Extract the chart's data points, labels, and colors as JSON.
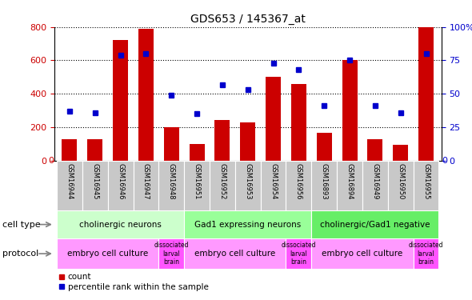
{
  "title": "GDS653 / 145367_at",
  "samples": [
    "GSM16944",
    "GSM16945",
    "GSM16946",
    "GSM16947",
    "GSM16948",
    "GSM16951",
    "GSM16952",
    "GSM16953",
    "GSM16954",
    "GSM16956",
    "GSM16893",
    "GSM16894",
    "GSM16949",
    "GSM16950",
    "GSM16955"
  ],
  "counts": [
    130,
    130,
    720,
    790,
    200,
    100,
    245,
    230,
    500,
    460,
    165,
    600,
    130,
    95,
    800
  ],
  "percentile_ranks": [
    37,
    36,
    79,
    80,
    49,
    35,
    57,
    53,
    73,
    68,
    41,
    75,
    41,
    36,
    80
  ],
  "ylim_left": [
    0,
    800
  ],
  "ylim_right": [
    0,
    100
  ],
  "yticks_left": [
    0,
    200,
    400,
    600,
    800
  ],
  "yticks_right": [
    0,
    25,
    50,
    75,
    100
  ],
  "bar_color": "#cc0000",
  "dot_color": "#0000cc",
  "cell_types": [
    {
      "label": "cholinergic neurons",
      "start": 0,
      "end": 5
    },
    {
      "label": "Gad1 expressing neurons",
      "start": 5,
      "end": 10
    },
    {
      "label": "cholinergic/Gad1 negative",
      "start": 10,
      "end": 15
    }
  ],
  "cell_type_colors": [
    "#ccffcc",
    "#99ff99",
    "#66ee66"
  ],
  "protocols": [
    {
      "label": "embryo cell culture",
      "start": 0,
      "end": 4,
      "small": false
    },
    {
      "label": "dissociated\nlarval\nbrain",
      "start": 4,
      "end": 5,
      "small": true
    },
    {
      "label": "embryo cell culture",
      "start": 5,
      "end": 9,
      "small": false
    },
    {
      "label": "dissociated\nlarval\nbrain",
      "start": 9,
      "end": 10,
      "small": true
    },
    {
      "label": "embryo cell culture",
      "start": 10,
      "end": 14,
      "small": false
    },
    {
      "label": "dissociated\nlarval\nbrain",
      "start": 14,
      "end": 15,
      "small": true
    }
  ],
  "protocol_color_main": "#ff99ff",
  "protocol_color_small": "#ff55ff",
  "legend_count_color": "#cc0000",
  "legend_pct_color": "#0000cc",
  "background_color": "#ffffff",
  "tick_bg_color": "#c8c8c8"
}
